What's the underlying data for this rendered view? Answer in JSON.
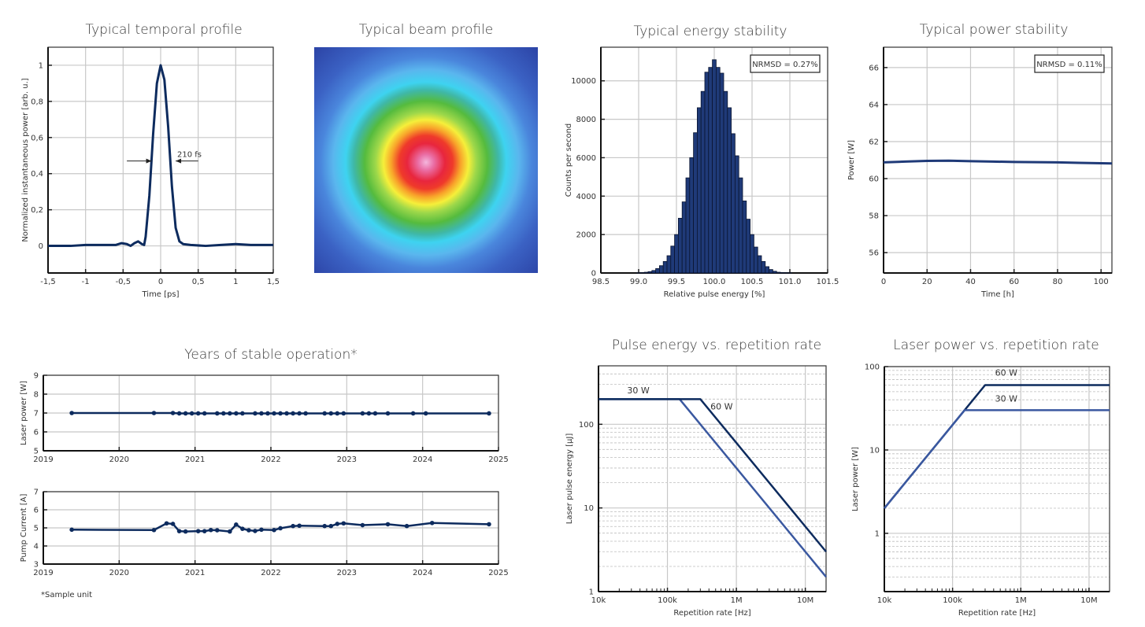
{
  "beam_profile": {
    "title": "Typical beam profile"
  },
  "footnote": "*Sample unit",
  "colors": {
    "dark_series": "#0d2b5e",
    "light_series": "#3a58a0",
    "histogram_fill": "#1f3a78",
    "grid": "#c8c8c8"
  },
  "chart_data": [
    {
      "type": "line",
      "title": "Typical temporal profile",
      "xlabel": "Time [ps]",
      "ylabel": "Normalized instantaneous power [arb. u.]",
      "xlim": [
        -1.5,
        1.5
      ],
      "ylim": [
        -0.15,
        1.1
      ],
      "grid": true,
      "xticks": [
        -1.5,
        -1,
        -0.5,
        0,
        0.5,
        1,
        1.5
      ],
      "xtick_labels": [
        "-1,5",
        "-1",
        "-0,5",
        "0",
        "0,5",
        "1",
        "1,5"
      ],
      "yticks": [
        0,
        0.2,
        0.4,
        0.6,
        0.8,
        1
      ],
      "ytick_labels": [
        "0",
        "0,2",
        "0,4",
        "0,6",
        "0,8",
        "1"
      ],
      "x": [
        -1.5,
        -1.2,
        -1.0,
        -0.8,
        -0.6,
        -0.52,
        -0.45,
        -0.4,
        -0.35,
        -0.3,
        -0.25,
        -0.22,
        -0.2,
        -0.15,
        -0.1,
        -0.05,
        0,
        0.05,
        0.1,
        0.15,
        0.2,
        0.25,
        0.3,
        0.4,
        0.6,
        0.8,
        1.0,
        1.2,
        1.5
      ],
      "y": [
        0,
        0,
        0.005,
        0.005,
        0.005,
        0.015,
        0.01,
        0,
        0.015,
        0.025,
        0.01,
        0.005,
        0.05,
        0.28,
        0.62,
        0.9,
        1.0,
        0.92,
        0.66,
        0.33,
        0.1,
        0.025,
        0.01,
        0.005,
        0,
        0.005,
        0.01,
        0.005,
        0.005
      ],
      "annotation": "210 fs"
    },
    {
      "type": "bar",
      "title": "Typical energy stability",
      "xlabel": "Relative pulse energy [%]",
      "ylabel": "Counts per second",
      "xlim": [
        98.5,
        101.5
      ],
      "ylim": [
        0,
        11750
      ],
      "grid": true,
      "xticks": [
        98.5,
        99.0,
        99.5,
        100.0,
        100.5,
        101.0,
        101.5
      ],
      "xtick_labels": [
        "98.5",
        "99.0",
        "99.5",
        "100.0",
        "100.5",
        "101.0",
        "101.5"
      ],
      "yticks": [
        0,
        2000,
        4000,
        6000,
        8000,
        10000
      ],
      "ytick_labels": [
        "0",
        "2000",
        "4000",
        "6000",
        "8000",
        "10000"
      ],
      "bin_width": 0.05,
      "x": [
        99.0,
        99.05,
        99.1,
        99.15,
        99.2,
        99.25,
        99.3,
        99.35,
        99.4,
        99.45,
        99.5,
        99.55,
        99.6,
        99.65,
        99.7,
        99.75,
        99.8,
        99.85,
        99.9,
        99.95,
        100.0,
        100.05,
        100.1,
        100.15,
        100.2,
        100.25,
        100.3,
        100.35,
        100.4,
        100.45,
        100.5,
        100.55,
        100.6,
        100.65,
        100.7,
        100.75,
        100.8,
        100.85,
        100.9,
        100.95,
        101.0
      ],
      "values": [
        10,
        20,
        40,
        70,
        130,
        230,
        380,
        600,
        900,
        1400,
        2000,
        2850,
        3700,
        4950,
        6000,
        7300,
        8600,
        9450,
        10450,
        10700,
        11100,
        10700,
        10400,
        9450,
        8600,
        7250,
        6100,
        4950,
        3750,
        2800,
        2000,
        1350,
        900,
        600,
        330,
        180,
        90,
        40,
        20,
        10,
        5
      ],
      "annotation": "NRMSD = 0.27%"
    },
    {
      "type": "line",
      "title": "Typical power stability",
      "xlabel": "Time [h]",
      "ylabel": "Power [W]",
      "xlim": [
        0,
        105
      ],
      "ylim": [
        54.9,
        67.1
      ],
      "grid": true,
      "xticks": [
        0,
        20,
        40,
        60,
        80,
        100
      ],
      "xtick_labels": [
        "0",
        "20",
        "40",
        "60",
        "80",
        "100"
      ],
      "yticks": [
        56,
        58,
        60,
        62,
        64,
        66
      ],
      "ytick_labels": [
        "56",
        "58",
        "60",
        "62",
        "64",
        "66"
      ],
      "x": [
        0,
        10,
        20,
        30,
        40,
        50,
        60,
        70,
        80,
        90,
        100,
        105
      ],
      "y": [
        60.88,
        60.92,
        60.96,
        60.97,
        60.94,
        60.92,
        60.9,
        60.89,
        60.88,
        60.85,
        60.83,
        60.82
      ],
      "annotation": "NRMSD = 0.11%"
    },
    {
      "type": "line",
      "title": "Years of stable operation*",
      "xlabel": "",
      "ylabel": "Laser power [W]",
      "xlim": [
        2019,
        2025
      ],
      "ylim": [
        5,
        9
      ],
      "grid": true,
      "xticks": [
        2019,
        2020,
        2021,
        2022,
        2023,
        2024,
        2025
      ],
      "xtick_labels": [
        "2019",
        "2020",
        "2021",
        "2022",
        "2023",
        "2024",
        "2025"
      ],
      "yticks": [
        5,
        6,
        7,
        8,
        9
      ],
      "ytick_labels": [
        "5",
        "6",
        "7",
        "8",
        "9"
      ],
      "dates": [
        "2019-05",
        "2020-06",
        "2020-09",
        "2020-10",
        "2020-11",
        "2020-12",
        "2021-01",
        "2021-02",
        "2021-04",
        "2021-05",
        "2021-06",
        "2021-07",
        "2021-08",
        "2021-10",
        "2021-11",
        "2021-12",
        "2022-01",
        "2022-02",
        "2022-03",
        "2022-04",
        "2022-05",
        "2022-06",
        "2022-09",
        "2022-10",
        "2022-11",
        "2022-12",
        "2023-03",
        "2023-04",
        "2023-05",
        "2023-07",
        "2023-11",
        "2024-01",
        "2024-11"
      ],
      "values": [
        7,
        7,
        7,
        6.98,
        6.98,
        6.98,
        6.98,
        6.98,
        6.98,
        6.98,
        6.98,
        6.98,
        6.98,
        6.98,
        6.98,
        6.98,
        6.98,
        6.98,
        6.98,
        6.98,
        6.98,
        6.98,
        6.98,
        6.98,
        6.98,
        6.98,
        6.98,
        6.98,
        6.98,
        6.98,
        6.98,
        6.98,
        6.98
      ]
    },
    {
      "type": "line",
      "title": "",
      "xlabel": "",
      "ylabel": "Pump Current [A]",
      "xlim": [
        2019,
        2025
      ],
      "ylim": [
        3,
        7
      ],
      "grid": true,
      "xticks": [
        2019,
        2020,
        2021,
        2022,
        2023,
        2024,
        2025
      ],
      "xtick_labels": [
        "2019",
        "2020",
        "2021",
        "2022",
        "2023",
        "2024",
        "2025"
      ],
      "yticks": [
        3,
        4,
        5,
        6,
        7
      ],
      "ytick_labels": [
        "3",
        "4",
        "5",
        "6",
        "7"
      ],
      "dates": [
        "2019-05",
        "2020-06",
        "2020-08",
        "2020-09",
        "2020-10",
        "2020-11",
        "2021-01",
        "2021-02",
        "2021-03",
        "2021-04",
        "2021-06",
        "2021-07",
        "2021-08",
        "2021-09",
        "2021-10",
        "2021-11",
        "2022-01",
        "2022-02",
        "2022-04",
        "2022-05",
        "2022-09",
        "2022-10",
        "2022-11",
        "2022-12",
        "2023-03",
        "2023-07",
        "2023-10",
        "2024-02",
        "2024-11"
      ],
      "values": [
        4.9,
        4.88,
        5.25,
        5.22,
        4.82,
        4.8,
        4.82,
        4.82,
        4.88,
        4.87,
        4.8,
        5.18,
        4.95,
        4.87,
        4.83,
        4.9,
        4.88,
        4.98,
        5.1,
        5.12,
        5.1,
        5.1,
        5.22,
        5.25,
        5.15,
        5.2,
        5.1,
        5.27,
        5.2
      ]
    },
    {
      "type": "line",
      "title": "Pulse energy vs. repetition rate",
      "xlabel": "Repetition rate [Hz]",
      "ylabel": "Laser pulse energy [µJ]",
      "xscale": "log",
      "yscale": "log",
      "xlim": [
        10000,
        20000000
      ],
      "ylim": [
        1,
        500
      ],
      "grid": true,
      "xticks": [
        10000,
        100000,
        1000000,
        10000000
      ],
      "xtick_labels": [
        "10k",
        "100k",
        "1M",
        "10M"
      ],
      "yticks": [
        1,
        10,
        100
      ],
      "ytick_labels": [
        "1",
        "10",
        "100"
      ],
      "series": [
        {
          "name": "30 W",
          "x": [
            10000,
            150000,
            20000000
          ],
          "y": [
            200,
            200,
            1.5
          ],
          "color": "#3a58a0"
        },
        {
          "name": "60 W",
          "x": [
            10000,
            300000,
            20000000
          ],
          "y": [
            200,
            200,
            3
          ],
          "color": "#0d2b5e"
        }
      ]
    },
    {
      "type": "line",
      "title": "Laser power vs. repetition rate",
      "xlabel": "Repetition rate [Hz]",
      "ylabel": "Laser power [W]",
      "xscale": "log",
      "yscale": "log",
      "xlim": [
        10000,
        20000000
      ],
      "ylim": [
        0.2,
        100
      ],
      "grid": true,
      "xticks": [
        10000,
        100000,
        1000000,
        10000000
      ],
      "xtick_labels": [
        "10k",
        "100k",
        "1M",
        "10M"
      ],
      "yticks": [
        1,
        10,
        100
      ],
      "ytick_labels": [
        "1",
        "10",
        "100"
      ],
      "series": [
        {
          "name": "60 W",
          "x": [
            10000,
            300000,
            20000000
          ],
          "y": [
            2,
            60,
            60
          ],
          "color": "#0d2b5e"
        },
        {
          "name": "30 W",
          "x": [
            10000,
            150000,
            20000000
          ],
          "y": [
            2,
            30,
            30
          ],
          "color": "#3a58a0"
        }
      ]
    }
  ]
}
